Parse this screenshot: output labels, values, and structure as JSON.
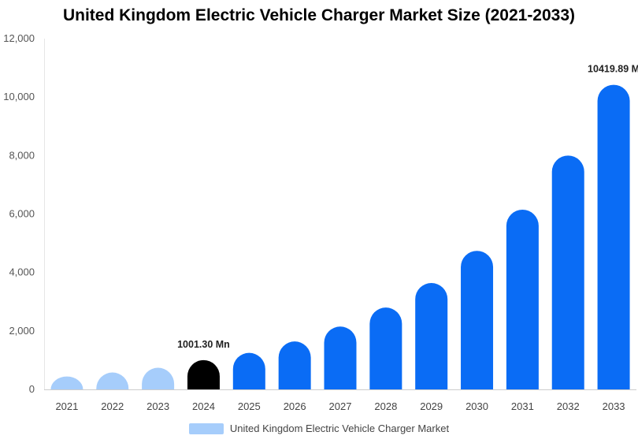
{
  "chart_data": {
    "type": "bar",
    "title": "United Kingdom Electric Vehicle Charger Market Size (2021-2033)",
    "categories": [
      "2021",
      "2022",
      "2023",
      "2024",
      "2025",
      "2026",
      "2027",
      "2028",
      "2029",
      "2030",
      "2031",
      "2032",
      "2033"
    ],
    "series": [
      {
        "name": "United Kingdom Electric Vehicle Charger Market",
        "values": [
          440,
          580,
          740,
          1001.3,
          1250,
          1640,
          2150,
          2800,
          3640,
          4740,
          6150,
          8000,
          10419.89
        ]
      }
    ],
    "ylim": [
      0,
      12000
    ],
    "yticks": [
      0,
      2000,
      4000,
      6000,
      8000,
      10000,
      12000
    ],
    "ytick_labels": [
      "0",
      "2,000",
      "4,000",
      "6,000",
      "8,000",
      "10,000",
      "12,000"
    ],
    "grid": false,
    "legend_position": "bottom",
    "data_labels": [
      {
        "category": "2024",
        "text": "1001.30 Mn"
      },
      {
        "category": "2033",
        "text": "10419.89 M"
      }
    ],
    "colors": {
      "history": "#a6cdfb",
      "base_year": "#000000",
      "forecast": "#0a6cf5",
      "legend": "#a6cdfb"
    },
    "base_year": "2024",
    "history_years": [
      "2021",
      "2022",
      "2023"
    ]
  }
}
